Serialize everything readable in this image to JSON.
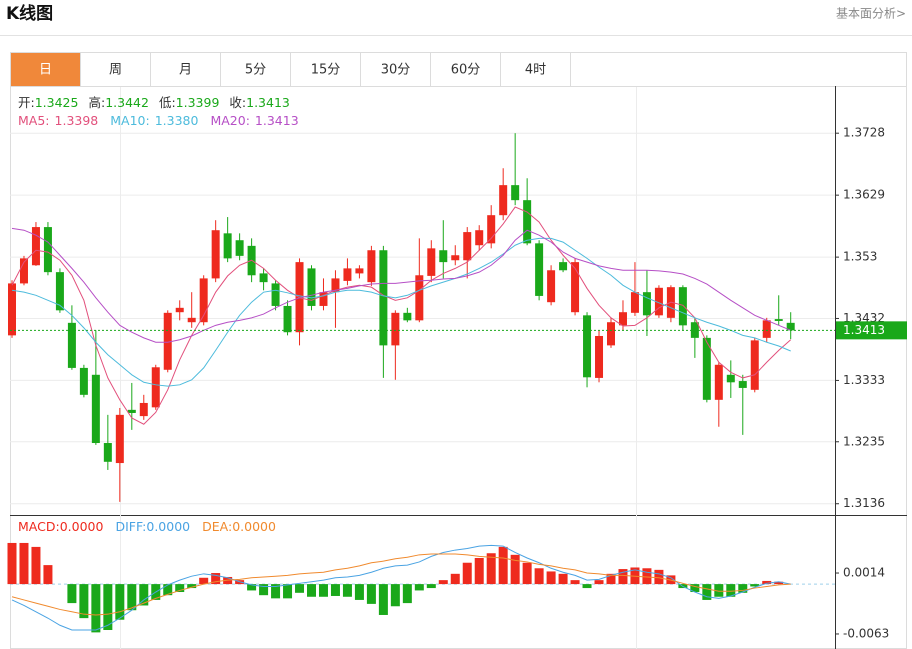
{
  "header": {
    "title": "K线图",
    "link": "基本面分析>"
  },
  "tabs": [
    "日",
    "周",
    "月",
    "5分",
    "15分",
    "30分",
    "60分",
    "4时"
  ],
  "active_tab": 0,
  "chart_data": [
    {
      "type": "candlestick",
      "info": [
        {
          "label": "开:",
          "value": "1.3425"
        },
        {
          "label": "高:",
          "value": "1.3442"
        },
        {
          "label": "低:",
          "value": "1.3399"
        },
        {
          "label": "收:",
          "value": "1.3413"
        }
      ],
      "info_color": "#1aa81a",
      "up_color": "#ee2a1e",
      "down_color": "#1aa81a",
      "open": [
        1.3405,
        1.3488,
        1.3517,
        1.3578,
        1.3506,
        1.3425,
        1.3353,
        1.3342,
        1.3233,
        1.3201,
        1.3286,
        1.3276,
        1.329,
        1.335,
        1.3442,
        1.3426,
        1.3426,
        1.3496,
        1.3568,
        1.3557,
        1.3548,
        1.3504,
        1.3488,
        1.3452,
        1.341,
        1.3512,
        1.3452,
        1.3474,
        1.3492,
        1.3504,
        1.349,
        1.3541,
        1.3389,
        1.3441,
        1.3429,
        1.35,
        1.3541,
        1.3525,
        1.3525,
        1.3549,
        1.3552,
        1.3597,
        1.3645,
        1.3621,
        1.3552,
        1.3458,
        1.3522,
        1.3442,
        1.3437,
        1.3337,
        1.3389,
        1.3421,
        1.3441,
        1.3474,
        1.3437,
        1.3433,
        1.3482,
        1.3426,
        1.3401,
        1.3302,
        1.3342,
        1.3332,
        1.3318,
        1.3401,
        1.3431,
        1.3425
      ],
      "high": [
        1.3493,
        1.3532,
        1.3586,
        1.3586,
        1.3512,
        1.3453,
        1.3358,
        1.3413,
        1.3278,
        1.3289,
        1.3329,
        1.331,
        1.3358,
        1.3445,
        1.3461,
        1.3474,
        1.3501,
        1.3589,
        1.3594,
        1.3568,
        1.356,
        1.3512,
        1.3493,
        1.3461,
        1.3528,
        1.3517,
        1.3496,
        1.3509,
        1.3528,
        1.3517,
        1.3548,
        1.3548,
        1.3445,
        1.3449,
        1.356,
        1.3557,
        1.3589,
        1.3549,
        1.3578,
        1.3581,
        1.3613,
        1.3672,
        1.3728,
        1.3656,
        1.3557,
        1.3517,
        1.3528,
        1.3528,
        1.3442,
        1.3413,
        1.3433,
        1.3461,
        1.3522,
        1.3509,
        1.3485,
        1.3485,
        1.3485,
        1.3433,
        1.3405,
        1.3362,
        1.3365,
        1.3342,
        1.3401,
        1.3433,
        1.3469,
        1.3442
      ],
      "low": [
        1.3401,
        1.3485,
        1.3516,
        1.3501,
        1.3441,
        1.335,
        1.3306,
        1.323,
        1.319,
        1.3139,
        1.3254,
        1.327,
        1.3286,
        1.3346,
        1.3429,
        1.3417,
        1.3421,
        1.349,
        1.3522,
        1.3525,
        1.349,
        1.3477,
        1.3445,
        1.3405,
        1.3389,
        1.3445,
        1.3445,
        1.3417,
        1.3485,
        1.3496,
        1.3484,
        1.3337,
        1.3334,
        1.3426,
        1.3426,
        1.349,
        1.3496,
        1.3517,
        1.3496,
        1.3541,
        1.3544,
        1.3589,
        1.3613,
        1.3549,
        1.3461,
        1.3453,
        1.3506,
        1.3437,
        1.3322,
        1.333,
        1.3385,
        1.3413,
        1.3436,
        1.3404,
        1.3433,
        1.3426,
        1.3413,
        1.3369,
        1.3298,
        1.3259,
        1.3305,
        1.3246,
        1.3314,
        1.3394,
        1.3421,
        1.3399
      ],
      "close": [
        1.3488,
        1.3528,
        1.3578,
        1.3506,
        1.3445,
        1.3353,
        1.331,
        1.3233,
        1.3203,
        1.3278,
        1.3281,
        1.3297,
        1.3354,
        1.3441,
        1.3449,
        1.3433,
        1.3496,
        1.3573,
        1.3528,
        1.3532,
        1.3501,
        1.349,
        1.3452,
        1.341,
        1.3522,
        1.3452,
        1.3474,
        1.3496,
        1.3512,
        1.3512,
        1.3541,
        1.3389,
        1.3441,
        1.3429,
        1.3501,
        1.3544,
        1.3522,
        1.3533,
        1.357,
        1.3573,
        1.3597,
        1.3645,
        1.3621,
        1.3552,
        1.3468,
        1.3509,
        1.3509,
        1.3522,
        1.3338,
        1.3404,
        1.3426,
        1.3442,
        1.3474,
        1.3437,
        1.3481,
        1.3482,
        1.3421,
        1.3401,
        1.3302,
        1.3358,
        1.333,
        1.3321,
        1.3397,
        1.3429,
        1.3428,
        1.3413
      ],
      "series": [
        {
          "name": "MA5:",
          "current": "1.3398",
          "color": "#e2507c",
          "values": [
            1.3485,
            1.3522,
            1.3541,
            1.3538,
            1.3525,
            1.3501,
            1.3461,
            1.3389,
            1.3337,
            1.3302,
            1.3273,
            1.3263,
            1.3282,
            1.3318,
            1.3366,
            1.3405,
            1.3437,
            1.3474,
            1.35,
            1.3517,
            1.3525,
            1.3512,
            1.3493,
            1.3477,
            1.3465,
            1.3461,
            1.3469,
            1.3477,
            1.3482,
            1.3485,
            1.3482,
            1.3469,
            1.3461,
            1.3465,
            1.3477,
            1.3493,
            1.3504,
            1.3512,
            1.3522,
            1.3541,
            1.356,
            1.3583,
            1.361,
            1.3602,
            1.3586,
            1.3557,
            1.3533,
            1.3512,
            1.348,
            1.3453,
            1.3433,
            1.342,
            1.3421,
            1.3433,
            1.3449,
            1.3458,
            1.3453,
            1.3433,
            1.3394,
            1.3362,
            1.3346,
            1.3337,
            1.3342,
            1.3362,
            1.3381,
            1.3398
          ]
        },
        {
          "name": "MA10:",
          "current": "1.3380",
          "color": "#4dbbdc",
          "values": [
            1.3477,
            1.3474,
            1.3469,
            1.3461,
            1.3453,
            1.3437,
            1.3417,
            1.3394,
            1.3374,
            1.3358,
            1.3342,
            1.333,
            1.3326,
            1.3324,
            1.3326,
            1.3334,
            1.3353,
            1.3381,
            1.341,
            1.3437,
            1.3458,
            1.3474,
            1.3477,
            1.3473,
            1.3468,
            1.3465,
            1.3468,
            1.3474,
            1.3477,
            1.3477,
            1.3474,
            1.3468,
            1.3465,
            1.3469,
            1.3477,
            1.3484,
            1.349,
            1.3496,
            1.3503,
            1.3512,
            1.3522,
            1.3535,
            1.3549,
            1.3557,
            1.356,
            1.356,
            1.3554,
            1.3541,
            1.3528,
            1.3514,
            1.3501,
            1.3485,
            1.3474,
            1.3465,
            1.3457,
            1.3449,
            1.3441,
            1.3433,
            1.3426,
            1.342,
            1.3413,
            1.3405,
            1.3401,
            1.3394,
            1.3388,
            1.338
          ]
        },
        {
          "name": "MA20:",
          "current": "1.3413",
          "color": "#b64fc6",
          "values": [
            1.3576,
            1.3573,
            1.3565,
            1.3554,
            1.3533,
            1.3512,
            1.349,
            1.3465,
            1.3442,
            1.3421,
            1.341,
            1.3401,
            1.3394,
            1.3394,
            1.3398,
            1.3404,
            1.3413,
            1.3421,
            1.3426,
            1.3429,
            1.3433,
            1.3439,
            1.3449,
            1.3458,
            1.3465,
            1.3469,
            1.3474,
            1.3477,
            1.348,
            1.3484,
            1.3487,
            1.3488,
            1.3488,
            1.349,
            1.3492,
            1.3493,
            1.3495,
            1.3496,
            1.35,
            1.3506,
            1.3517,
            1.3533,
            1.3557,
            1.3573,
            1.3565,
            1.3554,
            1.3538,
            1.3528,
            1.3522,
            1.3516,
            1.3512,
            1.3509,
            1.3509,
            1.3509,
            1.3508,
            1.3506,
            1.3503,
            1.3496,
            1.3487,
            1.3474,
            1.3461,
            1.3449,
            1.3437,
            1.3429,
            1.3421,
            1.3413
          ]
        }
      ],
      "last_price": 1.3413,
      "last_price_color": "#1aa81a",
      "ylim": [
        1.3118,
        1.3797
      ],
      "yticks": [
        1.3728,
        1.3629,
        1.353,
        1.3432,
        1.3333,
        1.3235,
        1.3136
      ],
      "grid": true
    },
    {
      "type": "macd",
      "histogram_name": "MACD:",
      "histogram_current": "0.0000",
      "up_color": "#ee2a1e",
      "down_color": "#1aa81a",
      "histogram": [
        0.0052,
        0.0052,
        0.0047,
        0.0024,
        0,
        -0.0024,
        -0.0043,
        -0.0061,
        -0.0058,
        -0.0045,
        -0.0033,
        -0.0027,
        -0.002,
        -0.0014,
        -0.001,
        -0.0005,
        0.0008,
        0.0014,
        0.0009,
        0.0005,
        -0.0008,
        -0.0014,
        -0.0018,
        -0.0018,
        -0.0011,
        -0.0016,
        -0.0016,
        -0.0015,
        -0.0016,
        -0.002,
        -0.0025,
        -0.0039,
        -0.0028,
        -0.0024,
        -0.0008,
        -0.0005,
        0.0005,
        0.0013,
        0.0027,
        0.0033,
        0.0039,
        0.0047,
        0.0037,
        0.0027,
        0.002,
        0.0016,
        0.0013,
        0.0005,
        -0.0005,
        0.0005,
        0.0013,
        0.0019,
        0.0021,
        0.002,
        0.0018,
        0.0011,
        -0.0005,
        -0.001,
        -0.002,
        -0.0016,
        -0.0016,
        -0.0011,
        -0.0003,
        0.0004,
        0.0003,
        0
      ],
      "series": [
        {
          "name": "DIFF:",
          "current": "0.0000",
          "color": "#4aa3e3",
          "values": [
            -0.002,
            -0.0027,
            -0.0035,
            -0.0043,
            -0.0052,
            -0.0058,
            -0.0058,
            -0.0058,
            -0.0052,
            -0.0043,
            -0.0033,
            -0.002,
            -0.001,
            -0.0001,
            0.0005,
            0.001,
            0.0013,
            0.0011,
            0.0008,
            0.0003,
            -0.0001,
            -0.0003,
            -0.0003,
            -0.0001,
            0.0001,
            0.0003,
            0.0005,
            0.0008,
            0.0009,
            0.0011,
            0.0015,
            0.002,
            0.0023,
            0.0024,
            0.0028,
            0.0035,
            0.004,
            0.0043,
            0.0045,
            0.0048,
            0.0049,
            0.0048,
            0.004,
            0.0033,
            0.0027,
            0.002,
            0.0015,
            0.0011,
            0.0005,
            0.0006,
            0.0011,
            0.0015,
            0.0018,
            0.0015,
            0.0013,
            0.0008,
            -0.0003,
            -0.001,
            -0.0016,
            -0.0018,
            -0.0015,
            -0.001,
            -0.0004,
            0.0001,
            0.0003,
            0
          ]
        },
        {
          "name": "DEA:",
          "current": "0.0000",
          "color": "#f08a2e",
          "values": [
            -0.0016,
            -0.002,
            -0.0024,
            -0.0028,
            -0.0032,
            -0.0035,
            -0.0038,
            -0.0039,
            -0.0038,
            -0.0035,
            -0.003,
            -0.0024,
            -0.0018,
            -0.0013,
            -0.0008,
            -0.0004,
            0,
            0.0003,
            0.0005,
            0.0006,
            0.0008,
            0.0009,
            0.001,
            0.0011,
            0.0013,
            0.0014,
            0.0015,
            0.0018,
            0.002,
            0.0023,
            0.0027,
            0.0029,
            0.0032,
            0.0034,
            0.0037,
            0.0038,
            0.0038,
            0.0038,
            0.0037,
            0.0035,
            0.0034,
            0.0033,
            0.003,
            0.0028,
            0.0025,
            0.0023,
            0.002,
            0.0018,
            0.0014,
            0.0013,
            0.0011,
            0.0011,
            0.001,
            0.0009,
            0.0008,
            0.0005,
            0.0001,
            -0.0003,
            -0.0006,
            -0.0009,
            -0.0009,
            -0.0008,
            -0.0005,
            -0.0003,
            -0.0001,
            0
          ]
        }
      ],
      "ylim": [
        -0.0082,
        0.0081
      ],
      "yticks": [
        0.0014,
        -0.0063
      ],
      "zero_color": "#9fd0ea"
    }
  ]
}
